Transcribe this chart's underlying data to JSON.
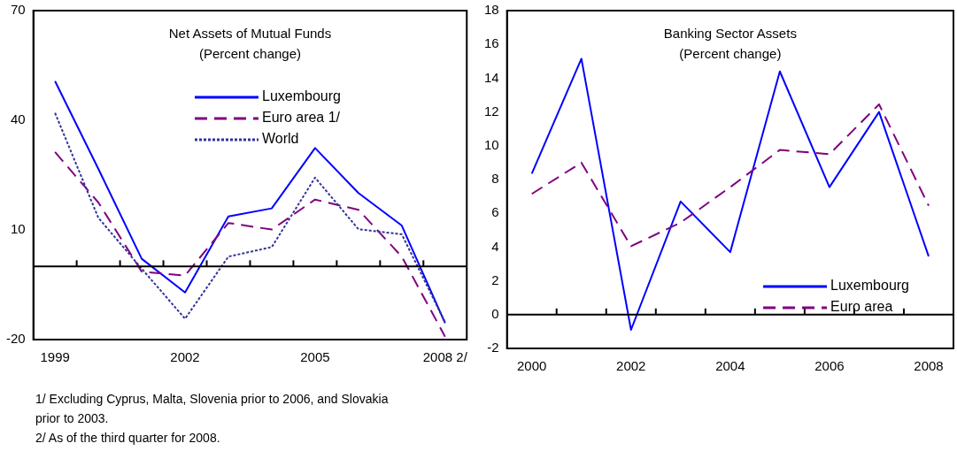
{
  "chart_data": [
    {
      "type": "line",
      "title": "Net Assets of Mutual Funds",
      "subtitle": "(Percent change)",
      "categories": [
        "1999",
        null,
        null,
        "2002",
        null,
        null,
        "2005",
        null,
        null,
        "2008 2/"
      ],
      "series": [
        {
          "name": "Luxembourg",
          "color": "#0000ff",
          "line_style": "solid",
          "values": [
            50.7,
            26.7,
            2.1,
            -7.1,
            13.7,
            15.9,
            32.4,
            20.1,
            11.2,
            -15.5
          ]
        },
        {
          "name": "Euro area 1/",
          "color": "#800080",
          "line_style": "dashed",
          "values": [
            31.3,
            17.5,
            -1.4,
            -2.5,
            11.9,
            10.1,
            18.3,
            15.5,
            2.7,
            -19.2
          ]
        },
        {
          "name": "World",
          "color": "#333399",
          "line_style": "dotted",
          "values": [
            42.0,
            13.3,
            -0.6,
            -14.3,
            2.7,
            5.3,
            24.3,
            10.2,
            8.8,
            -15.3
          ]
        }
      ],
      "ylim": [
        -20,
        70
      ],
      "yticks": [
        -20,
        10,
        40,
        70
      ],
      "grid": false,
      "legend": "top",
      "marker": "none",
      "ref_lines": [
        {
          "axis": "y",
          "value": 0
        }
      ],
      "annotations": [
        "1/ Excluding Cyprus, Malta, Slovenia prior to 2006, and Slovakia prior to 2003.",
        "2/ As of the third quarter for 2008."
      ]
    },
    {
      "type": "line",
      "title": "Banking Sector Assets",
      "subtitle": "(Percent change)",
      "categories": [
        "2000",
        null,
        "2002",
        null,
        "2004",
        null,
        "2006",
        null,
        "2008"
      ],
      "series": [
        {
          "name": "Luxembourg",
          "color": "#0000ff",
          "line_style": "solid",
          "values": [
            8.35,
            15.15,
            -0.9,
            6.7,
            3.7,
            14.4,
            7.55,
            12.0,
            3.45
          ]
        },
        {
          "name": "Euro area",
          "color": "#800080",
          "line_style": "dashed",
          "values": [
            7.15,
            9.0,
            4.05,
            5.45,
            7.55,
            9.75,
            9.5,
            12.45,
            6.45
          ]
        }
      ],
      "ylim": [
        -2,
        18
      ],
      "yticks": [
        -2,
        0,
        2,
        4,
        6,
        8,
        10,
        12,
        14,
        16,
        18
      ],
      "grid": false,
      "legend": "bottom right",
      "marker": "none",
      "ref_lines": [
        {
          "axis": "y",
          "value": 0
        }
      ]
    }
  ]
}
